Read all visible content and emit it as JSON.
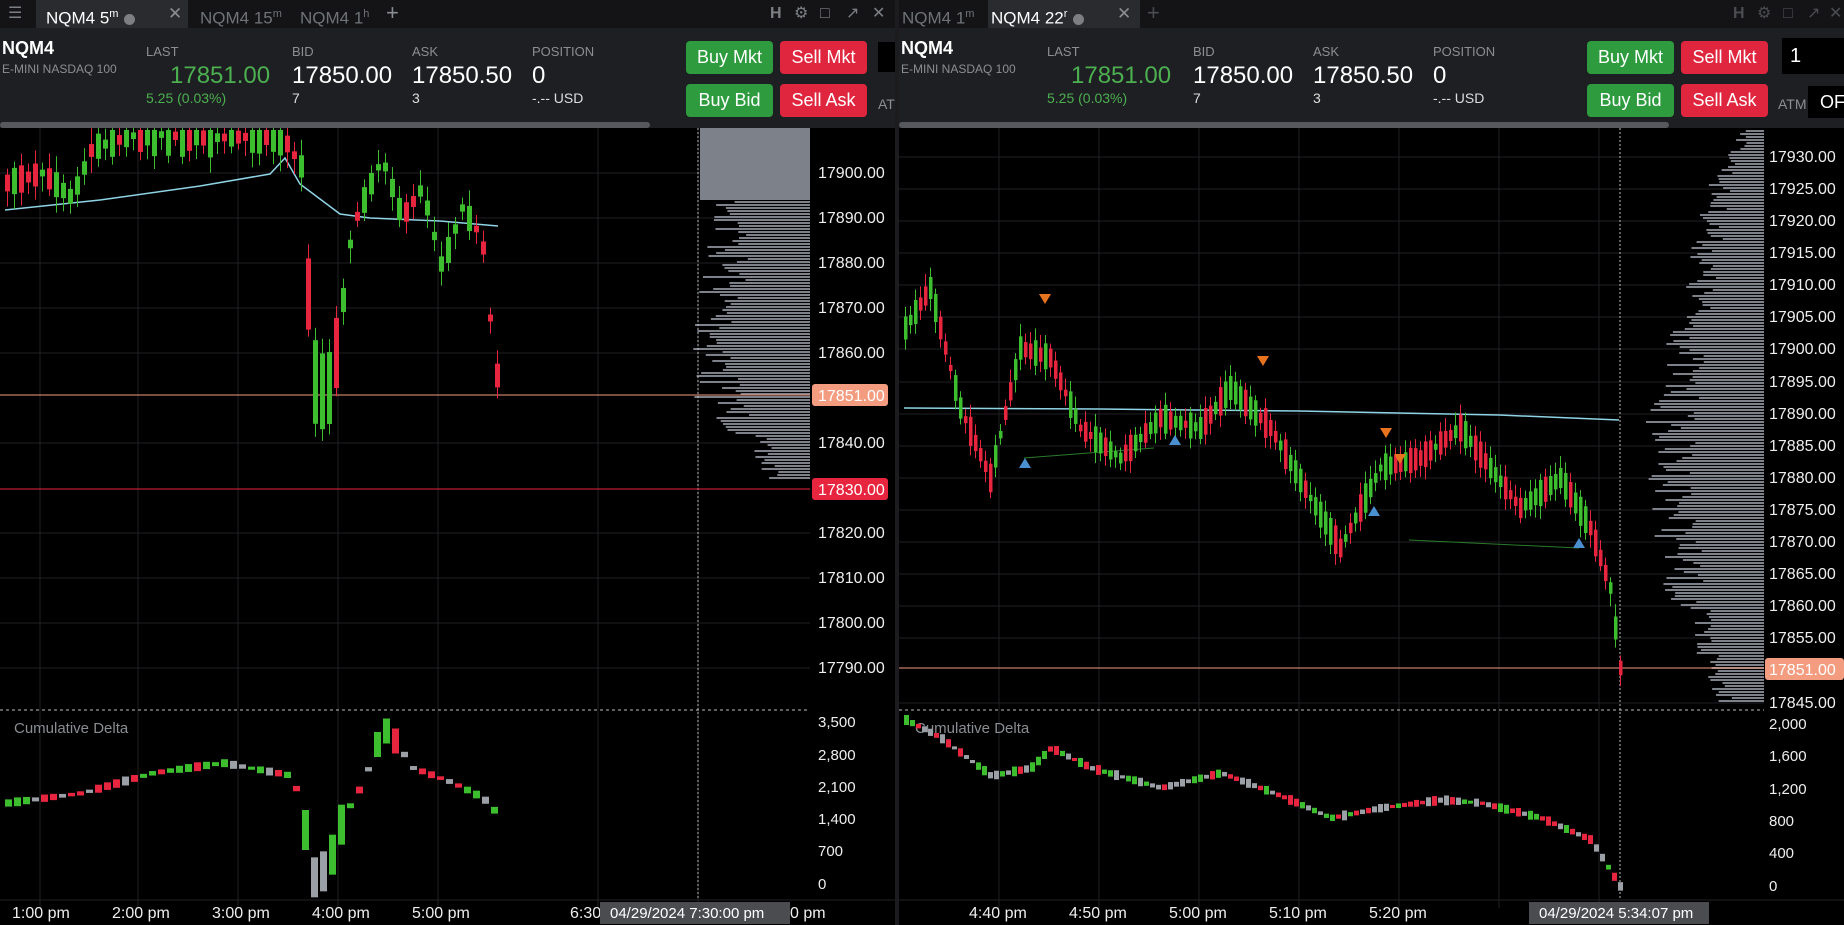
{
  "left": {
    "tabs": [
      {
        "label": "NQM4 5",
        "sup": "m",
        "active": true
      },
      {
        "label": "NQM4 15",
        "sup": "m"
      },
      {
        "label": "NQM4 1",
        "sup": "h"
      }
    ],
    "header": {
      "symbol": "NQM4",
      "description": "E-MINI NASDAQ 100",
      "last_label": "LAST",
      "last": "17851.00",
      "change": "5.25 (0.03%)",
      "bid_label": "BID",
      "bid": "17850.00",
      "bid_size": "7",
      "ask_label": "ASK",
      "ask": "17850.50",
      "ask_size": "3",
      "position_label": "POSITION",
      "position": "0",
      "position_pl": "-.-- USD",
      "buy_mkt": "Buy Mkt",
      "sell_mkt": "Sell Mkt",
      "buy_bid": "Buy Bid",
      "sell_ask": "Sell Ask",
      "atm": "AT"
    },
    "price_axis": [
      "17900.00",
      "17890.00",
      "17880.00",
      "17870.00",
      "17860.00",
      "17840.00",
      "17820.00",
      "17810.00",
      "17800.00",
      "17790.00"
    ],
    "price_tags": {
      "last": "17851.00",
      "line": "17830.00"
    },
    "study_label": "Cumulative Delta",
    "delta_axis": [
      "3,500",
      "2,800",
      "2,100",
      "1,400",
      "700",
      "0"
    ],
    "time_axis": [
      "1:00 pm",
      "2:00 pm",
      "3:00 pm",
      "4:00 pm",
      "5:00 pm",
      "6:30",
      "0 pm"
    ],
    "crosshair_time": "04/29/2024 7:30:00 pm"
  },
  "right": {
    "tabs": [
      {
        "label": "NQM4 1",
        "sup": "m"
      },
      {
        "label": "NQM4 22",
        "sup": "r",
        "active": true
      }
    ],
    "header": {
      "symbol": "NQM4",
      "description": "E-MINI NASDAQ 100",
      "last_label": "LAST",
      "last": "17851.00",
      "change": "5.25 (0.03%)",
      "bid_label": "BID",
      "bid": "17850.00",
      "bid_size": "7",
      "ask_label": "ASK",
      "ask": "17850.50",
      "ask_size": "3",
      "position_label": "POSITION",
      "position": "0",
      "position_pl": "-.-- USD",
      "buy_mkt": "Buy Mkt",
      "sell_mkt": "Sell Mkt",
      "buy_bid": "Buy Bid",
      "sell_ask": "Sell Ask",
      "atm": "ATM",
      "quantity": "1",
      "of": "OF"
    },
    "price_axis": [
      "17930.00",
      "17925.00",
      "17920.00",
      "17915.00",
      "17910.00",
      "17905.00",
      "17900.00",
      "17895.00",
      "17890.00",
      "17885.00",
      "17880.00",
      "17875.00",
      "17870.00",
      "17865.00",
      "17860.00",
      "17855.00",
      "17845.00"
    ],
    "price_tags": {
      "last": "17851.00"
    },
    "study_label": "Cumulative Delta",
    "delta_axis": [
      "2,000",
      "1,600",
      "1,200",
      "800",
      "400",
      "0"
    ],
    "time_axis": [
      "4:40 pm",
      "4:50 pm",
      "5:00 pm",
      "5:10 pm",
      "5:20 pm"
    ],
    "crosshair_time": "04/29/2024 5:34:07 pm"
  },
  "colors": {
    "up": "#3cbe2e",
    "down": "#e8253f",
    "vwap": "#8fd4e6",
    "last_tag": "#f39c80",
    "line_tag": "#e8253f"
  }
}
